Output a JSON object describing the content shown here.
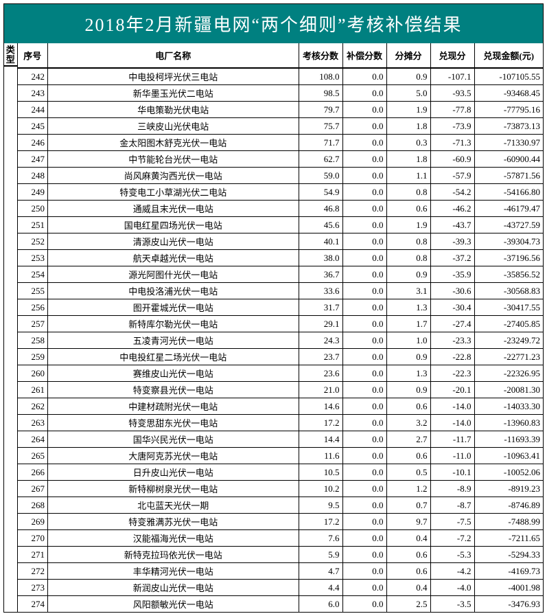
{
  "title": "2018年2月新疆电网“两个细则”考核补偿结果",
  "colors": {
    "header_bg": "#008080",
    "header_text": "#ffffff",
    "border": "#000000",
    "bg": "#ffffff"
  },
  "headers": {
    "type": "类型",
    "seq": "序号",
    "name": "电厂名称",
    "score": "考核分数",
    "comp": "补偿分数",
    "share": "分摊分",
    "cash_pts": "兑现分",
    "cash_amt": "兑现金额(元)"
  },
  "rows": [
    {
      "seq": "242",
      "name": "中电投柯坪光伏三电站",
      "score": "108.0",
      "comp": "0.0",
      "share": "0.9",
      "cash_pts": "-107.1",
      "cash_amt": "-107105.55"
    },
    {
      "seq": "243",
      "name": "新华墨玉光伏二电站",
      "score": "98.5",
      "comp": "0.0",
      "share": "5.0",
      "cash_pts": "-93.5",
      "cash_amt": "-93468.45"
    },
    {
      "seq": "244",
      "name": "华电策勒光伏电站",
      "score": "79.7",
      "comp": "0.0",
      "share": "1.9",
      "cash_pts": "-77.8",
      "cash_amt": "-77795.16"
    },
    {
      "seq": "245",
      "name": "三峡皮山光伏电站",
      "score": "75.7",
      "comp": "0.0",
      "share": "1.8",
      "cash_pts": "-73.9",
      "cash_amt": "-73873.13"
    },
    {
      "seq": "246",
      "name": "金太阳图木舒克光伏一电站",
      "score": "71.7",
      "comp": "0.0",
      "share": "0.3",
      "cash_pts": "-71.3",
      "cash_amt": "-71330.97"
    },
    {
      "seq": "247",
      "name": "中节能轮台光伏一电站",
      "score": "62.7",
      "comp": "0.0",
      "share": "1.8",
      "cash_pts": "-60.9",
      "cash_amt": "-60900.44"
    },
    {
      "seq": "248",
      "name": "尚风麻黄沟西光伏一电站",
      "score": "59.0",
      "comp": "0.0",
      "share": "1.1",
      "cash_pts": "-57.9",
      "cash_amt": "-57871.56"
    },
    {
      "seq": "249",
      "name": "特变电工小草湖光伏二电站",
      "score": "54.9",
      "comp": "0.0",
      "share": "0.8",
      "cash_pts": "-54.2",
      "cash_amt": "-54166.80"
    },
    {
      "seq": "250",
      "name": "通威且末光伏一电站",
      "score": "46.8",
      "comp": "0.0",
      "share": "0.6",
      "cash_pts": "-46.2",
      "cash_amt": "-46179.47"
    },
    {
      "seq": "251",
      "name": "国电红星四场光伏一电站",
      "score": "45.6",
      "comp": "0.0",
      "share": "1.9",
      "cash_pts": "-43.7",
      "cash_amt": "-43727.59"
    },
    {
      "seq": "252",
      "name": "清源皮山光伏一电站",
      "score": "40.1",
      "comp": "0.0",
      "share": "0.8",
      "cash_pts": "-39.3",
      "cash_amt": "-39304.73"
    },
    {
      "seq": "253",
      "name": "航天卓越光伏一电站",
      "score": "38.0",
      "comp": "0.0",
      "share": "0.8",
      "cash_pts": "-37.2",
      "cash_amt": "-37196.56"
    },
    {
      "seq": "254",
      "name": "源光阿图什光伏一电站",
      "score": "36.7",
      "comp": "0.0",
      "share": "0.9",
      "cash_pts": "-35.9",
      "cash_amt": "-35856.52"
    },
    {
      "seq": "255",
      "name": "中电投洛浦光伏一电站",
      "score": "33.6",
      "comp": "0.0",
      "share": "3.1",
      "cash_pts": "-30.6",
      "cash_amt": "-30568.83"
    },
    {
      "seq": "256",
      "name": "图开霍城光伏一电站",
      "score": "31.7",
      "comp": "0.0",
      "share": "1.3",
      "cash_pts": "-30.4",
      "cash_amt": "-30417.55"
    },
    {
      "seq": "257",
      "name": "新特库尔勒光伏一电站",
      "score": "29.1",
      "comp": "0.0",
      "share": "1.7",
      "cash_pts": "-27.4",
      "cash_amt": "-27405.85"
    },
    {
      "seq": "258",
      "name": "五凌青河光伏一电站",
      "score": "24.3",
      "comp": "0.0",
      "share": "1.0",
      "cash_pts": "-23.3",
      "cash_amt": "-23249.72"
    },
    {
      "seq": "259",
      "name": "中电投红星二场光伏一电站",
      "score": "23.7",
      "comp": "0.0",
      "share": "0.9",
      "cash_pts": "-22.8",
      "cash_amt": "-22771.23"
    },
    {
      "seq": "260",
      "name": "赛维皮山光伏一电站",
      "score": "23.6",
      "comp": "0.0",
      "share": "1.3",
      "cash_pts": "-22.3",
      "cash_amt": "-22326.95"
    },
    {
      "seq": "261",
      "name": "特变察县光伏一电站",
      "score": "21.0",
      "comp": "0.0",
      "share": "0.9",
      "cash_pts": "-20.1",
      "cash_amt": "-20081.30"
    },
    {
      "seq": "262",
      "name": "中建材疏附光伏一电站",
      "score": "14.6",
      "comp": "0.0",
      "share": "0.6",
      "cash_pts": "-14.0",
      "cash_amt": "-14033.30"
    },
    {
      "seq": "263",
      "name": "特变思甜东光伏一电站",
      "score": "17.2",
      "comp": "0.0",
      "share": "3.2",
      "cash_pts": "-14.0",
      "cash_amt": "-13960.83"
    },
    {
      "seq": "264",
      "name": "国华兴民光伏一电站",
      "score": "14.4",
      "comp": "0.0",
      "share": "2.7",
      "cash_pts": "-11.7",
      "cash_amt": "-11693.39"
    },
    {
      "seq": "265",
      "name": "大唐阿克苏光伏一电站",
      "score": "11.6",
      "comp": "0.0",
      "share": "0.6",
      "cash_pts": "-11.0",
      "cash_amt": "-10963.41"
    },
    {
      "seq": "266",
      "name": "日升皮山光伏一电站",
      "score": "10.5",
      "comp": "0.0",
      "share": "0.5",
      "cash_pts": "-10.1",
      "cash_amt": "-10052.06"
    },
    {
      "seq": "267",
      "name": "新特柳树泉光伏一电站",
      "score": "10.2",
      "comp": "0.0",
      "share": "1.2",
      "cash_pts": "-8.9",
      "cash_amt": "-8919.23"
    },
    {
      "seq": "268",
      "name": "北屯蓝天光伏一期",
      "score": "9.5",
      "comp": "0.0",
      "share": "0.7",
      "cash_pts": "-8.7",
      "cash_amt": "-8746.89"
    },
    {
      "seq": "269",
      "name": "特变雅满苏光伏一电站",
      "score": "17.2",
      "comp": "0.0",
      "share": "9.7",
      "cash_pts": "-7.5",
      "cash_amt": "-7488.99"
    },
    {
      "seq": "270",
      "name": "汉能福海光伏一电站",
      "score": "7.6",
      "comp": "0.0",
      "share": "0.4",
      "cash_pts": "-7.2",
      "cash_amt": "-7211.65"
    },
    {
      "seq": "271",
      "name": "新特克拉玛依光伏一电站",
      "score": "5.9",
      "comp": "0.0",
      "share": "0.6",
      "cash_pts": "-5.3",
      "cash_amt": "-5294.33"
    },
    {
      "seq": "272",
      "name": "丰华精河光伏一电站",
      "score": "4.7",
      "comp": "0.0",
      "share": "0.6",
      "cash_pts": "-4.2",
      "cash_amt": "-4169.73"
    },
    {
      "seq": "273",
      "name": "新润皮山光伏一电站",
      "score": "4.4",
      "comp": "0.0",
      "share": "0.4",
      "cash_pts": "-4.0",
      "cash_amt": "-4001.98"
    },
    {
      "seq": "274",
      "name": "风阳额敏光伏一电站",
      "score": "6.0",
      "comp": "0.0",
      "share": "2.5",
      "cash_pts": "-3.5",
      "cash_amt": "-3476.93"
    }
  ]
}
